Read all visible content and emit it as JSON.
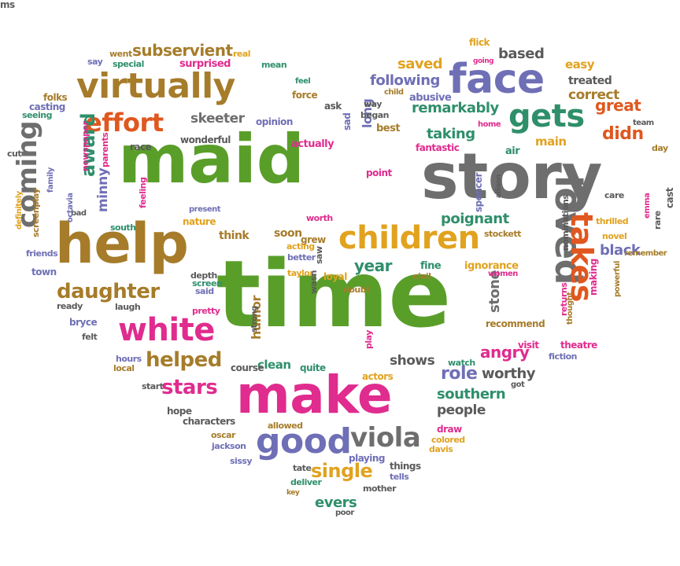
{
  "palette": {
    "green": "#5a9e2a",
    "olive": "#a67c2a",
    "gray": "#6e6e6e",
    "pink": "#e02c8e",
    "purple": "#6f6fb6",
    "gold": "#e1a21e",
    "teal": "#2f8f6b",
    "orange": "#e0571f",
    "dark": "#5a5a5a"
  },
  "words": [
    {
      "text": "maid",
      "color": "green"
    },
    {
      "text": "story",
      "color": "gray"
    },
    {
      "text": "time",
      "color": "green"
    },
    {
      "text": "help",
      "color": "olive"
    },
    {
      "text": "make",
      "color": "pink"
    },
    {
      "text": "face",
      "color": "purple"
    },
    {
      "text": "virtually",
      "color": "olive"
    },
    {
      "text": "children",
      "color": "gold"
    },
    {
      "text": "loved",
      "color": "gray"
    },
    {
      "text": "gets",
      "color": "teal"
    },
    {
      "text": "white",
      "color": "pink"
    },
    {
      "text": "good",
      "color": "purple"
    },
    {
      "text": "viola",
      "color": "gray"
    },
    {
      "text": "effort",
      "color": "orange"
    },
    {
      "text": "takes",
      "color": "orange"
    },
    {
      "text": "coming",
      "color": "gray"
    },
    {
      "text": "daughter",
      "color": "olive"
    },
    {
      "text": "helped",
      "color": "olive"
    },
    {
      "text": "stars",
      "color": "pink"
    },
    {
      "text": "single",
      "color": "gold"
    },
    {
      "text": "subservient",
      "color": "olive"
    },
    {
      "text": "following",
      "color": "purple"
    },
    {
      "text": "remarkably",
      "color": "teal"
    },
    {
      "text": "didn",
      "color": "orange"
    },
    {
      "text": "great",
      "color": "orange"
    },
    {
      "text": "skeeter",
      "color": "gray"
    },
    {
      "text": "award",
      "color": "teal"
    },
    {
      "text": "stone",
      "color": "gray"
    },
    {
      "text": "role",
      "color": "purple"
    },
    {
      "text": "worthy",
      "color": "dark"
    },
    {
      "text": "southern",
      "color": "teal"
    },
    {
      "text": "angry",
      "color": "pink"
    },
    {
      "text": "people",
      "color": "dark"
    },
    {
      "text": "humor",
      "color": "olive"
    },
    {
      "text": "year",
      "color": "teal"
    },
    {
      "text": "poignant",
      "color": "teal"
    },
    {
      "text": "saved",
      "color": "gold"
    },
    {
      "text": "taking",
      "color": "teal"
    },
    {
      "text": "correct",
      "color": "olive"
    },
    {
      "text": "based",
      "color": "dark"
    },
    {
      "text": "black",
      "color": "purple"
    },
    {
      "text": "shows",
      "color": "dark"
    },
    {
      "text": "evers",
      "color": "teal"
    },
    {
      "text": "clean",
      "color": "teal"
    },
    {
      "text": "soon",
      "color": "olive"
    },
    {
      "text": "think",
      "color": "olive"
    },
    {
      "text": "minny",
      "color": "purple"
    },
    {
      "text": "main",
      "color": "gold"
    },
    {
      "text": "long",
      "color": "purple"
    },
    {
      "text": "easy",
      "color": "gold"
    },
    {
      "text": "treated",
      "color": "dark"
    },
    {
      "text": "went",
      "color": "olive"
    },
    {
      "text": "real",
      "color": "gold"
    },
    {
      "text": "say",
      "color": "purple"
    },
    {
      "text": "special",
      "color": "teal"
    },
    {
      "text": "surprised",
      "color": "pink"
    },
    {
      "text": "mean",
      "color": "teal"
    },
    {
      "text": "flick",
      "color": "gold"
    },
    {
      "text": "going",
      "color": "pink"
    },
    {
      "text": "folks",
      "color": "olive"
    },
    {
      "text": "casting",
      "color": "purple"
    },
    {
      "text": "seeing",
      "color": "teal"
    },
    {
      "text": "feel",
      "color": "teal"
    },
    {
      "text": "force",
      "color": "olive"
    },
    {
      "text": "ask",
      "color": "dark"
    },
    {
      "text": "way",
      "color": "dark"
    },
    {
      "text": "child",
      "color": "olive"
    },
    {
      "text": "abusive",
      "color": "purple"
    },
    {
      "text": "began",
      "color": "dark"
    },
    {
      "text": "best",
      "color": "olive"
    },
    {
      "text": "opinion",
      "color": "purple"
    },
    {
      "text": "sad",
      "color": "purple"
    },
    {
      "text": "home",
      "color": "pink"
    },
    {
      "text": "team",
      "color": "dark"
    },
    {
      "text": "wonderful",
      "color": "dark"
    },
    {
      "text": "race",
      "color": "dark"
    },
    {
      "text": "actually",
      "color": "pink"
    },
    {
      "text": "fantastic",
      "color": "pink"
    },
    {
      "text": "air",
      "color": "teal"
    },
    {
      "text": "day",
      "color": "olive"
    },
    {
      "text": "cut",
      "color": "dark"
    },
    {
      "text": "newspaper",
      "color": "pink"
    },
    {
      "text": "parents",
      "color": "pink"
    },
    {
      "text": "point",
      "color": "pink"
    },
    {
      "text": "allison",
      "color": "dark"
    },
    {
      "text": "care",
      "color": "dark"
    },
    {
      "text": "cast",
      "color": "dark"
    },
    {
      "text": "spencer",
      "color": "purple"
    },
    {
      "text": "definitely",
      "color": "gold"
    },
    {
      "text": "screenplay",
      "color": "olive"
    },
    {
      "text": "family",
      "color": "purple"
    },
    {
      "text": "feeling",
      "color": "pink"
    },
    {
      "text": "bad",
      "color": "dark"
    },
    {
      "text": "present",
      "color": "purple"
    },
    {
      "text": "octavia",
      "color": "purple"
    },
    {
      "text": "worth",
      "color": "pink"
    },
    {
      "text": "thrilled",
      "color": "gold"
    },
    {
      "text": "emma",
      "color": "pink"
    },
    {
      "text": "rare",
      "color": "dark"
    },
    {
      "text": "nature",
      "color": "gold"
    },
    {
      "text": "south",
      "color": "teal"
    },
    {
      "text": "stockett",
      "color": "olive"
    },
    {
      "text": "friends",
      "color": "purple"
    },
    {
      "text": "grew",
      "color": "olive"
    },
    {
      "text": "acting",
      "color": "gold"
    },
    {
      "text": "novel",
      "color": "gold"
    },
    {
      "text": "nominations",
      "color": "dark"
    },
    {
      "text": "better",
      "color": "purple"
    },
    {
      "text": "fine",
      "color": "teal"
    },
    {
      "text": "ignorance",
      "color": "gold"
    },
    {
      "text": "town",
      "color": "purple"
    },
    {
      "text": "taylor",
      "color": "gold"
    },
    {
      "text": "saw",
      "color": "dark"
    },
    {
      "text": "loyal",
      "color": "gold"
    },
    {
      "text": "civil",
      "color": "olive"
    },
    {
      "text": "women",
      "color": "pink"
    },
    {
      "text": "remember",
      "color": "olive"
    },
    {
      "text": "depth",
      "color": "dark"
    },
    {
      "text": "screen",
      "color": "teal"
    },
    {
      "text": "said",
      "color": "purple"
    },
    {
      "text": "wasn",
      "color": "dark"
    },
    {
      "text": "doubt",
      "color": "olive"
    },
    {
      "text": "making",
      "color": "pink"
    },
    {
      "text": "powerful",
      "color": "olive"
    },
    {
      "text": "ready",
      "color": "dark"
    },
    {
      "text": "laugh",
      "color": "dark"
    },
    {
      "text": "returns",
      "color": "pink"
    },
    {
      "text": "bryce",
      "color": "purple"
    },
    {
      "text": "pretty",
      "color": "pink"
    },
    {
      "text": "strong",
      "color": "dark"
    },
    {
      "text": "recommend",
      "color": "olive"
    },
    {
      "text": "thought",
      "color": "olive"
    },
    {
      "text": "felt",
      "color": "dark"
    },
    {
      "text": "play",
      "color": "pink"
    },
    {
      "text": "theatre",
      "color": "pink"
    },
    {
      "text": "visit",
      "color": "pink"
    },
    {
      "text": "fiction",
      "color": "purple"
    },
    {
      "text": "hours",
      "color": "purple"
    },
    {
      "text": "local",
      "color": "olive"
    },
    {
      "text": "course",
      "color": "dark"
    },
    {
      "text": "quite",
      "color": "teal"
    },
    {
      "text": "actors",
      "color": "gold"
    },
    {
      "text": "watch",
      "color": "teal"
    },
    {
      "text": "start",
      "color": "dark"
    },
    {
      "text": "got",
      "color": "dark"
    },
    {
      "text": "hope",
      "color": "dark"
    },
    {
      "text": "characters",
      "color": "dark"
    },
    {
      "text": "allowed",
      "color": "olive"
    },
    {
      "text": "oscar",
      "color": "olive"
    },
    {
      "text": "jackson",
      "color": "purple"
    },
    {
      "text": "draw",
      "color": "pink"
    },
    {
      "text": "playing",
      "color": "purple"
    },
    {
      "text": "colored",
      "color": "gold"
    },
    {
      "text": "sissy",
      "color": "purple"
    },
    {
      "text": "davis",
      "color": "gold"
    },
    {
      "text": "tate",
      "color": "dark"
    },
    {
      "text": "things",
      "color": "dark"
    },
    {
      "text": "deliver",
      "color": "teal"
    },
    {
      "text": "tells",
      "color": "purple"
    },
    {
      "text": "key",
      "color": "olive"
    },
    {
      "text": "mother",
      "color": "dark"
    },
    {
      "text": "poor",
      "color": "dark"
    },
    {
      "text": "ms",
      "color": "dark"
    }
  ]
}
